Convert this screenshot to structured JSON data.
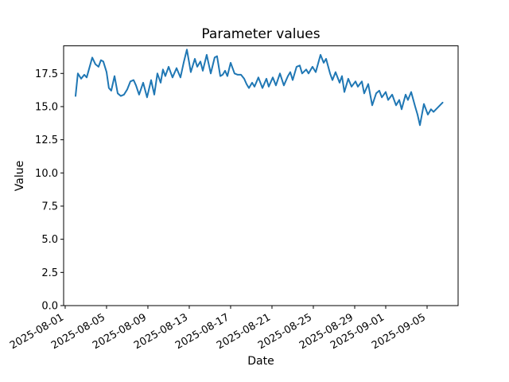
{
  "chart_data": {
    "type": "line",
    "title": "Parameter values",
    "xlabel": "Date",
    "ylabel": "Value",
    "grid": false,
    "legend": "none",
    "line_color": "#1f77b4",
    "background_color": "#ffffff",
    "axis_color": "#000000",
    "x_axis": {
      "unit": "days since 2025-08-01",
      "lim": [
        -0.15,
        38.0
      ],
      "tick_rotation_deg": 30,
      "ticks": [
        {
          "d": 0,
          "label": "2025-08-01"
        },
        {
          "d": 4,
          "label": "2025-08-05"
        },
        {
          "d": 8,
          "label": "2025-08-09"
        },
        {
          "d": 12,
          "label": "2025-08-13"
        },
        {
          "d": 16,
          "label": "2025-08-17"
        },
        {
          "d": 20,
          "label": "2025-08-21"
        },
        {
          "d": 24,
          "label": "2025-08-25"
        },
        {
          "d": 28,
          "label": "2025-08-29"
        },
        {
          "d": 31,
          "label": "2025-09-01"
        },
        {
          "d": 35,
          "label": "2025-09-05"
        }
      ]
    },
    "y_axis": {
      "lim": [
        0,
        19.58
      ],
      "ticks": [
        {
          "v": 0.0,
          "label": "0.0"
        },
        {
          "v": 2.5,
          "label": "2.5"
        },
        {
          "v": 5.0,
          "label": "5.0"
        },
        {
          "v": 7.5,
          "label": "7.5"
        },
        {
          "v": 10.0,
          "label": "10.0"
        },
        {
          "v": 12.5,
          "label": "12.5"
        },
        {
          "v": 15.0,
          "label": "15.0"
        },
        {
          "v": 17.5,
          "label": "17.5"
        }
      ]
    },
    "series": [
      {
        "name": "Parameter values",
        "color": "#1f77b4",
        "x": [
          1.0,
          1.23,
          1.54,
          1.85,
          2.08,
          2.62,
          2.92,
          3.23,
          3.46,
          3.69,
          4.0,
          4.23,
          4.46,
          4.77,
          5.08,
          5.38,
          5.69,
          6.0,
          6.31,
          6.62,
          6.85,
          7.15,
          7.54,
          7.92,
          8.31,
          8.62,
          8.92,
          9.23,
          9.46,
          9.69,
          10.0,
          10.38,
          10.77,
          11.15,
          11.46,
          11.77,
          12.15,
          12.54,
          12.77,
          13.08,
          13.31,
          13.69,
          14.08,
          14.46,
          14.69,
          15.0,
          15.23,
          15.46,
          15.69,
          16.0,
          16.38,
          16.69,
          17.0,
          17.31,
          17.54,
          17.77,
          18.08,
          18.31,
          18.69,
          19.08,
          19.46,
          19.69,
          20.08,
          20.38,
          20.77,
          21.15,
          21.54,
          21.77,
          22.0,
          22.38,
          22.69,
          22.92,
          23.31,
          23.54,
          23.92,
          24.23,
          24.69,
          25.0,
          25.23,
          25.62,
          25.85,
          26.15,
          26.54,
          26.77,
          27.0,
          27.38,
          27.69,
          28.08,
          28.31,
          28.69,
          28.92,
          29.31,
          29.69,
          30.08,
          30.38,
          30.62,
          31.0,
          31.23,
          31.62,
          32.0,
          32.31,
          32.54,
          32.92,
          33.15,
          33.46,
          33.85,
          34.08,
          34.31,
          34.69,
          35.08,
          35.38,
          35.62,
          36.0,
          36.5
        ],
        "y": [
          15.8,
          17.5,
          17.1,
          17.4,
          17.2,
          18.7,
          18.2,
          18.0,
          18.5,
          18.4,
          17.6,
          16.4,
          16.2,
          17.3,
          16.0,
          15.8,
          15.9,
          16.3,
          16.9,
          17.0,
          16.6,
          15.9,
          16.8,
          15.7,
          17.0,
          15.9,
          17.5,
          16.8,
          17.8,
          17.3,
          18.0,
          17.2,
          17.9,
          17.2,
          18.3,
          19.3,
          17.6,
          18.6,
          18.0,
          18.4,
          17.7,
          18.9,
          17.5,
          18.7,
          18.8,
          17.3,
          17.4,
          17.7,
          17.3,
          18.3,
          17.5,
          17.4,
          17.4,
          17.1,
          16.7,
          16.4,
          16.8,
          16.5,
          17.2,
          16.4,
          17.1,
          16.5,
          17.2,
          16.6,
          17.5,
          16.6,
          17.3,
          17.6,
          17.0,
          18.0,
          18.1,
          17.5,
          17.8,
          17.5,
          18.0,
          17.6,
          18.9,
          18.3,
          18.6,
          17.5,
          17.0,
          17.6,
          16.8,
          17.3,
          16.1,
          17.1,
          16.5,
          16.9,
          16.5,
          16.9,
          16.0,
          16.7,
          15.1,
          16.0,
          16.2,
          15.7,
          16.1,
          15.5,
          15.9,
          15.1,
          15.5,
          14.8,
          15.9,
          15.5,
          16.1,
          15.0,
          14.4,
          13.6,
          15.2,
          14.4,
          14.8,
          14.6,
          14.9,
          15.3
        ]
      }
    ]
  }
}
